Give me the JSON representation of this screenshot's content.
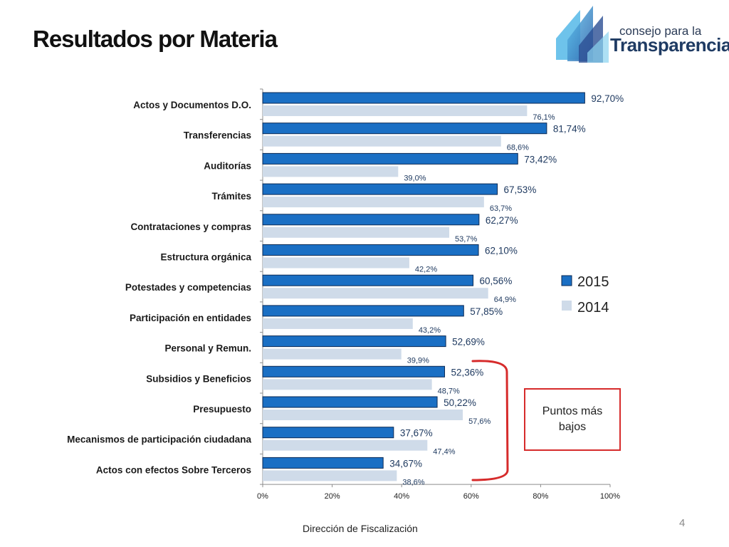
{
  "slide": {
    "title": "Resultados por Materia",
    "footer": "Dirección de Fiscalización",
    "page_number": "4"
  },
  "logo": {
    "line1": "consejo para la",
    "line2": "Transparencia"
  },
  "callout": {
    "text": "Puntos más bajos",
    "border_color": "#d62b2b"
  },
  "chart_data": {
    "type": "bar",
    "orientation": "horizontal",
    "categories": [
      "Actos y Documentos D.O.",
      "Transferencias",
      "Auditorías",
      "Trámites",
      "Contrataciones y compras",
      "Estructura orgánica",
      "Potestades y competencias",
      "Participación en entidades",
      "Personal y Remun.",
      "Subsidios y Beneficios",
      "Presupuesto",
      "Mecanismos de participación ciudadana",
      "Actos con efectos Sobre Terceros"
    ],
    "series": [
      {
        "name": "2015",
        "color": "#1a6fc4",
        "values": [
          92.7,
          81.74,
          73.42,
          67.53,
          62.27,
          62.1,
          60.56,
          57.85,
          52.69,
          52.36,
          50.22,
          37.67,
          34.67
        ],
        "labels": [
          "92,70%",
          "81,74%",
          "73,42%",
          "67,53%",
          "62,27%",
          "62,10%",
          "60,56%",
          "57,85%",
          "52,69%",
          "52,36%",
          "50,22%",
          "37,67%",
          "34,67%"
        ]
      },
      {
        "name": "2014",
        "color": "#cfdbe9",
        "values": [
          76.1,
          68.6,
          39.0,
          63.7,
          53.7,
          42.2,
          64.9,
          43.2,
          39.9,
          48.7,
          57.6,
          47.4,
          38.6
        ],
        "labels": [
          "76,1%",
          "68,6%",
          "39,0%",
          "63,7%",
          "53,7%",
          "42,2%",
          "64,9%",
          "43,2%",
          "39,9%",
          "48,7%",
          "57,6%",
          "47,4%",
          "38,6%"
        ]
      }
    ],
    "xlim": [
      0,
      100
    ],
    "xticks": [
      0,
      20,
      40,
      60,
      80,
      100
    ],
    "xtick_labels": [
      "0%",
      "20%",
      "40%",
      "60%",
      "80%",
      "100%"
    ],
    "grid": false,
    "legend_position": "right",
    "bracket_color": "#d62b2b"
  }
}
